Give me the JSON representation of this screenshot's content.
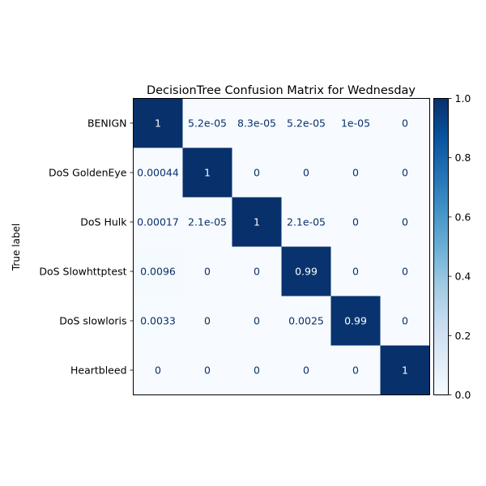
{
  "chart_data": {
    "type": "heatmap",
    "title": "DecisionTree Confusion Matrix for Wednesday",
    "ylabel": "True label",
    "xlabel": "",
    "row_labels": [
      "BENIGN",
      "DoS GoldenEye",
      "DoS Hulk",
      "DoS Slowhttptest",
      "DoS slowloris",
      "Heartbleed"
    ],
    "values": [
      [
        1.0,
        5.2e-05,
        8.3e-05,
        5.2e-05,
        1e-05,
        0
      ],
      [
        0.00044,
        1.0,
        0,
        0,
        0,
        0
      ],
      [
        0.00017,
        2.1e-05,
        1.0,
        2.1e-05,
        0,
        0
      ],
      [
        0.0096,
        0,
        0,
        0.99,
        0,
        0
      ],
      [
        0.0033,
        0,
        0,
        0.0025,
        0.99,
        0
      ],
      [
        0,
        0,
        0,
        0,
        0,
        1.0
      ]
    ],
    "cell_labels": [
      [
        "1",
        "5.2e-05",
        "8.3e-05",
        "5.2e-05",
        "1e-05",
        "0"
      ],
      [
        "0.00044",
        "1",
        "0",
        "0",
        "0",
        "0"
      ],
      [
        "0.00017",
        "2.1e-05",
        "1",
        "2.1e-05",
        "0",
        "0"
      ],
      [
        "0.0096",
        "0",
        "0",
        "0.99",
        "0",
        "0"
      ],
      [
        "0.0033",
        "0",
        "0",
        "0.0025",
        "0.99",
        "0"
      ],
      [
        "0",
        "0",
        "0",
        "0",
        "0",
        "1"
      ]
    ],
    "colormap": "Blues",
    "colorbar": {
      "range": [
        0.0,
        1.0
      ],
      "ticks": [
        0.0,
        0.2,
        0.4,
        0.6,
        0.8,
        1.0
      ],
      "tick_labels": [
        "0.0",
        "0.2",
        "0.4",
        "0.6",
        "0.8",
        "1.0"
      ]
    },
    "colors": {
      "low": "#f7fbff",
      "high": "#08306b",
      "text_dark": "#08306b",
      "text_light": "#ffffff"
    }
  }
}
